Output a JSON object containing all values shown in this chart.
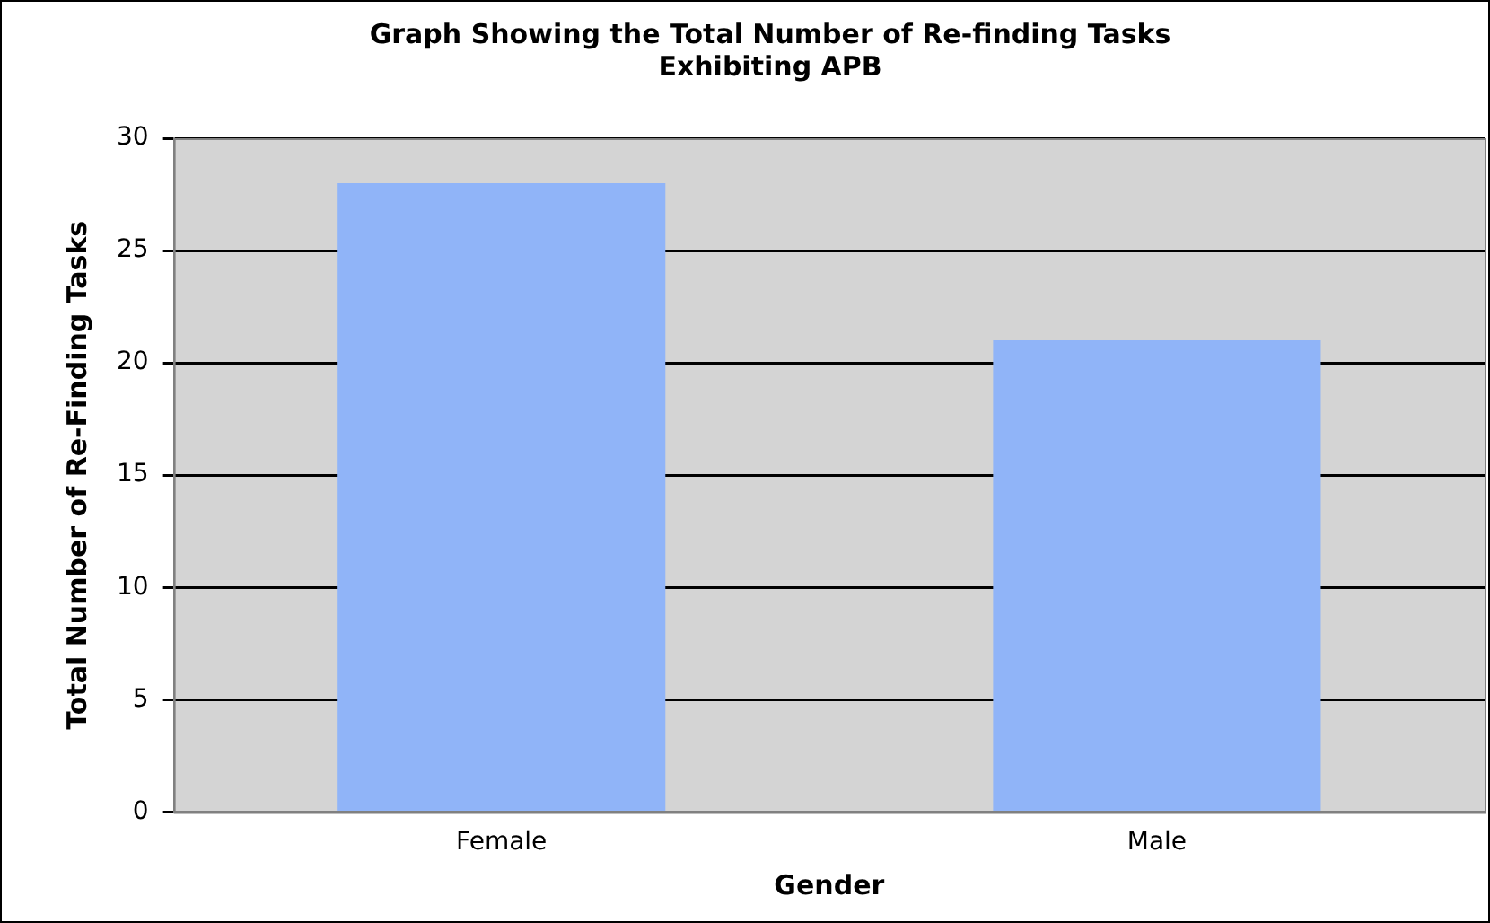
{
  "chart_data": {
    "type": "bar",
    "title": "Graph Showing the Total Number of Re-finding Tasks Exhibiting APB",
    "xlabel": "Gender",
    "ylabel": "Total Number of Re-Finding Tasks",
    "categories": [
      "Female",
      "Male"
    ],
    "values": [
      28,
      21
    ],
    "color": "#90b4f8",
    "ylim": [
      0,
      30
    ],
    "yticks": [
      0,
      5,
      10,
      15,
      20,
      25,
      30
    ],
    "grid": "y",
    "legend": false
  }
}
